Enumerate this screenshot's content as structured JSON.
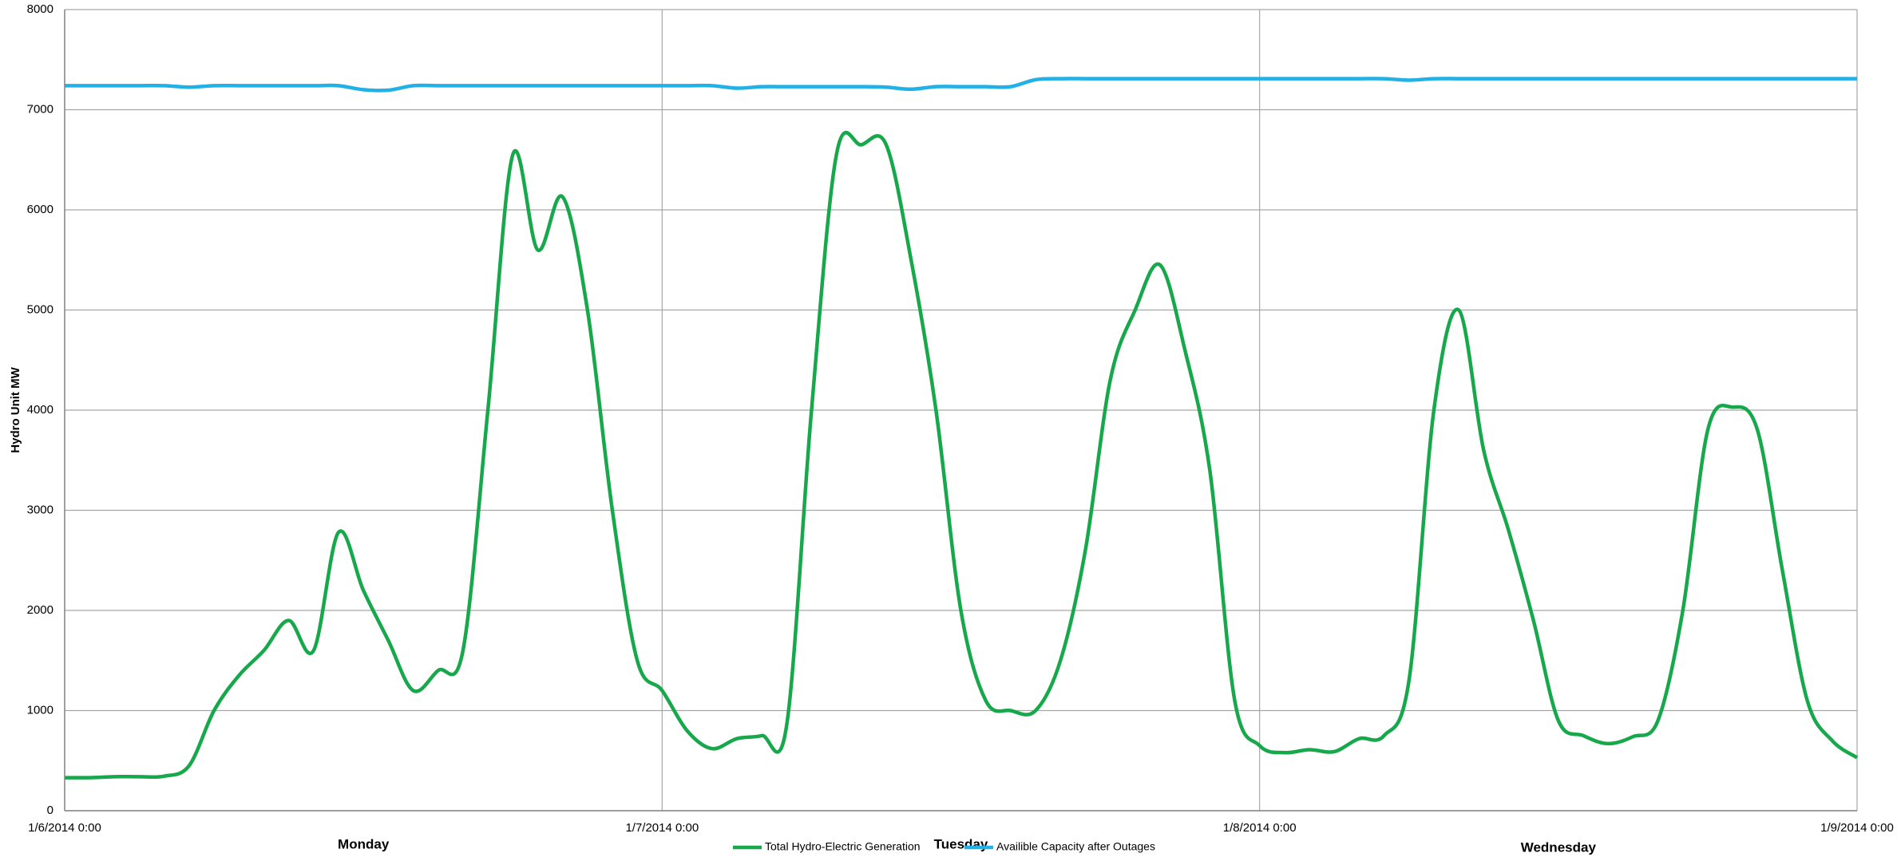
{
  "chart_data": {
    "type": "line",
    "y_label": "Hydro Unit MW",
    "x": [
      0,
      1,
      2,
      3,
      4,
      5,
      6,
      7,
      8,
      9,
      10,
      11,
      12,
      13,
      14,
      15,
      16,
      17,
      18,
      19,
      20,
      21,
      22,
      23,
      24,
      25,
      26,
      27,
      28,
      29,
      30,
      31,
      32,
      33,
      34,
      35,
      36,
      37,
      38,
      39,
      40,
      41,
      42,
      43,
      44,
      45,
      46,
      47,
      48,
      49,
      50,
      51,
      52,
      53,
      54,
      55,
      56,
      57,
      58,
      59,
      60,
      61,
      62,
      63,
      64,
      65,
      66,
      67,
      68,
      69,
      70,
      71,
      72
    ],
    "series": [
      {
        "name": "Total Hydro-Electric Generation",
        "color": "#17a84b",
        "values": [
          330,
          330,
          340,
          340,
          345,
          450,
          1000,
          1350,
          1600,
          1900,
          1600,
          2780,
          2200,
          1700,
          1200,
          1400,
          1600,
          4000,
          6550,
          5600,
          6130,
          5000,
          3000,
          1500,
          1200,
          800,
          620,
          720,
          750,
          850,
          4000,
          6550,
          6650,
          6650,
          5500,
          4000,
          2000,
          1100,
          1000,
          1000,
          1500,
          2600,
          4300,
          5000,
          5450,
          4600,
          3400,
          1100,
          650,
          580,
          610,
          590,
          720,
          750,
          1300,
          4000,
          5000,
          3600,
          2800,
          1900,
          900,
          750,
          670,
          740,
          900,
          2000,
          3800,
          4030,
          3800,
          2400,
          1100,
          700,
          530
        ]
      },
      {
        "name": "Availible Capacity after Outages",
        "color": "#21b1e6",
        "values": [
          7240,
          7240,
          7240,
          7240,
          7240,
          7225,
          7240,
          7240,
          7240,
          7240,
          7240,
          7240,
          7200,
          7195,
          7240,
          7240,
          7240,
          7240,
          7240,
          7240,
          7240,
          7240,
          7240,
          7240,
          7240,
          7240,
          7240,
          7215,
          7230,
          7230,
          7230,
          7230,
          7230,
          7225,
          7205,
          7230,
          7230,
          7230,
          7230,
          7300,
          7310,
          7310,
          7310,
          7310,
          7310,
          7310,
          7310,
          7310,
          7310,
          7310,
          7310,
          7310,
          7310,
          7310,
          7295,
          7310,
          7310,
          7310,
          7310,
          7310,
          7310,
          7310,
          7310,
          7310,
          7310,
          7310,
          7310,
          7310,
          7310,
          7310,
          7310,
          7310,
          7310
        ]
      }
    ],
    "xlim": [
      0,
      72
    ],
    "xticks": [
      {
        "value": 0,
        "label": "1/6/2014 0:00"
      },
      {
        "value": 24,
        "label": "1/7/2014 0:00"
      },
      {
        "value": 48,
        "label": "1/8/2014 0:00"
      },
      {
        "value": 72,
        "label": "1/9/2014 0:00"
      }
    ],
    "x2_categories": [
      "Monday",
      "Tuesday",
      "Wednesday"
    ],
    "ylim": [
      0,
      8000
    ],
    "yticks": [
      0,
      1000,
      2000,
      3000,
      4000,
      5000,
      6000,
      7000,
      8000
    ],
    "grid": true,
    "legend": "bottom"
  }
}
